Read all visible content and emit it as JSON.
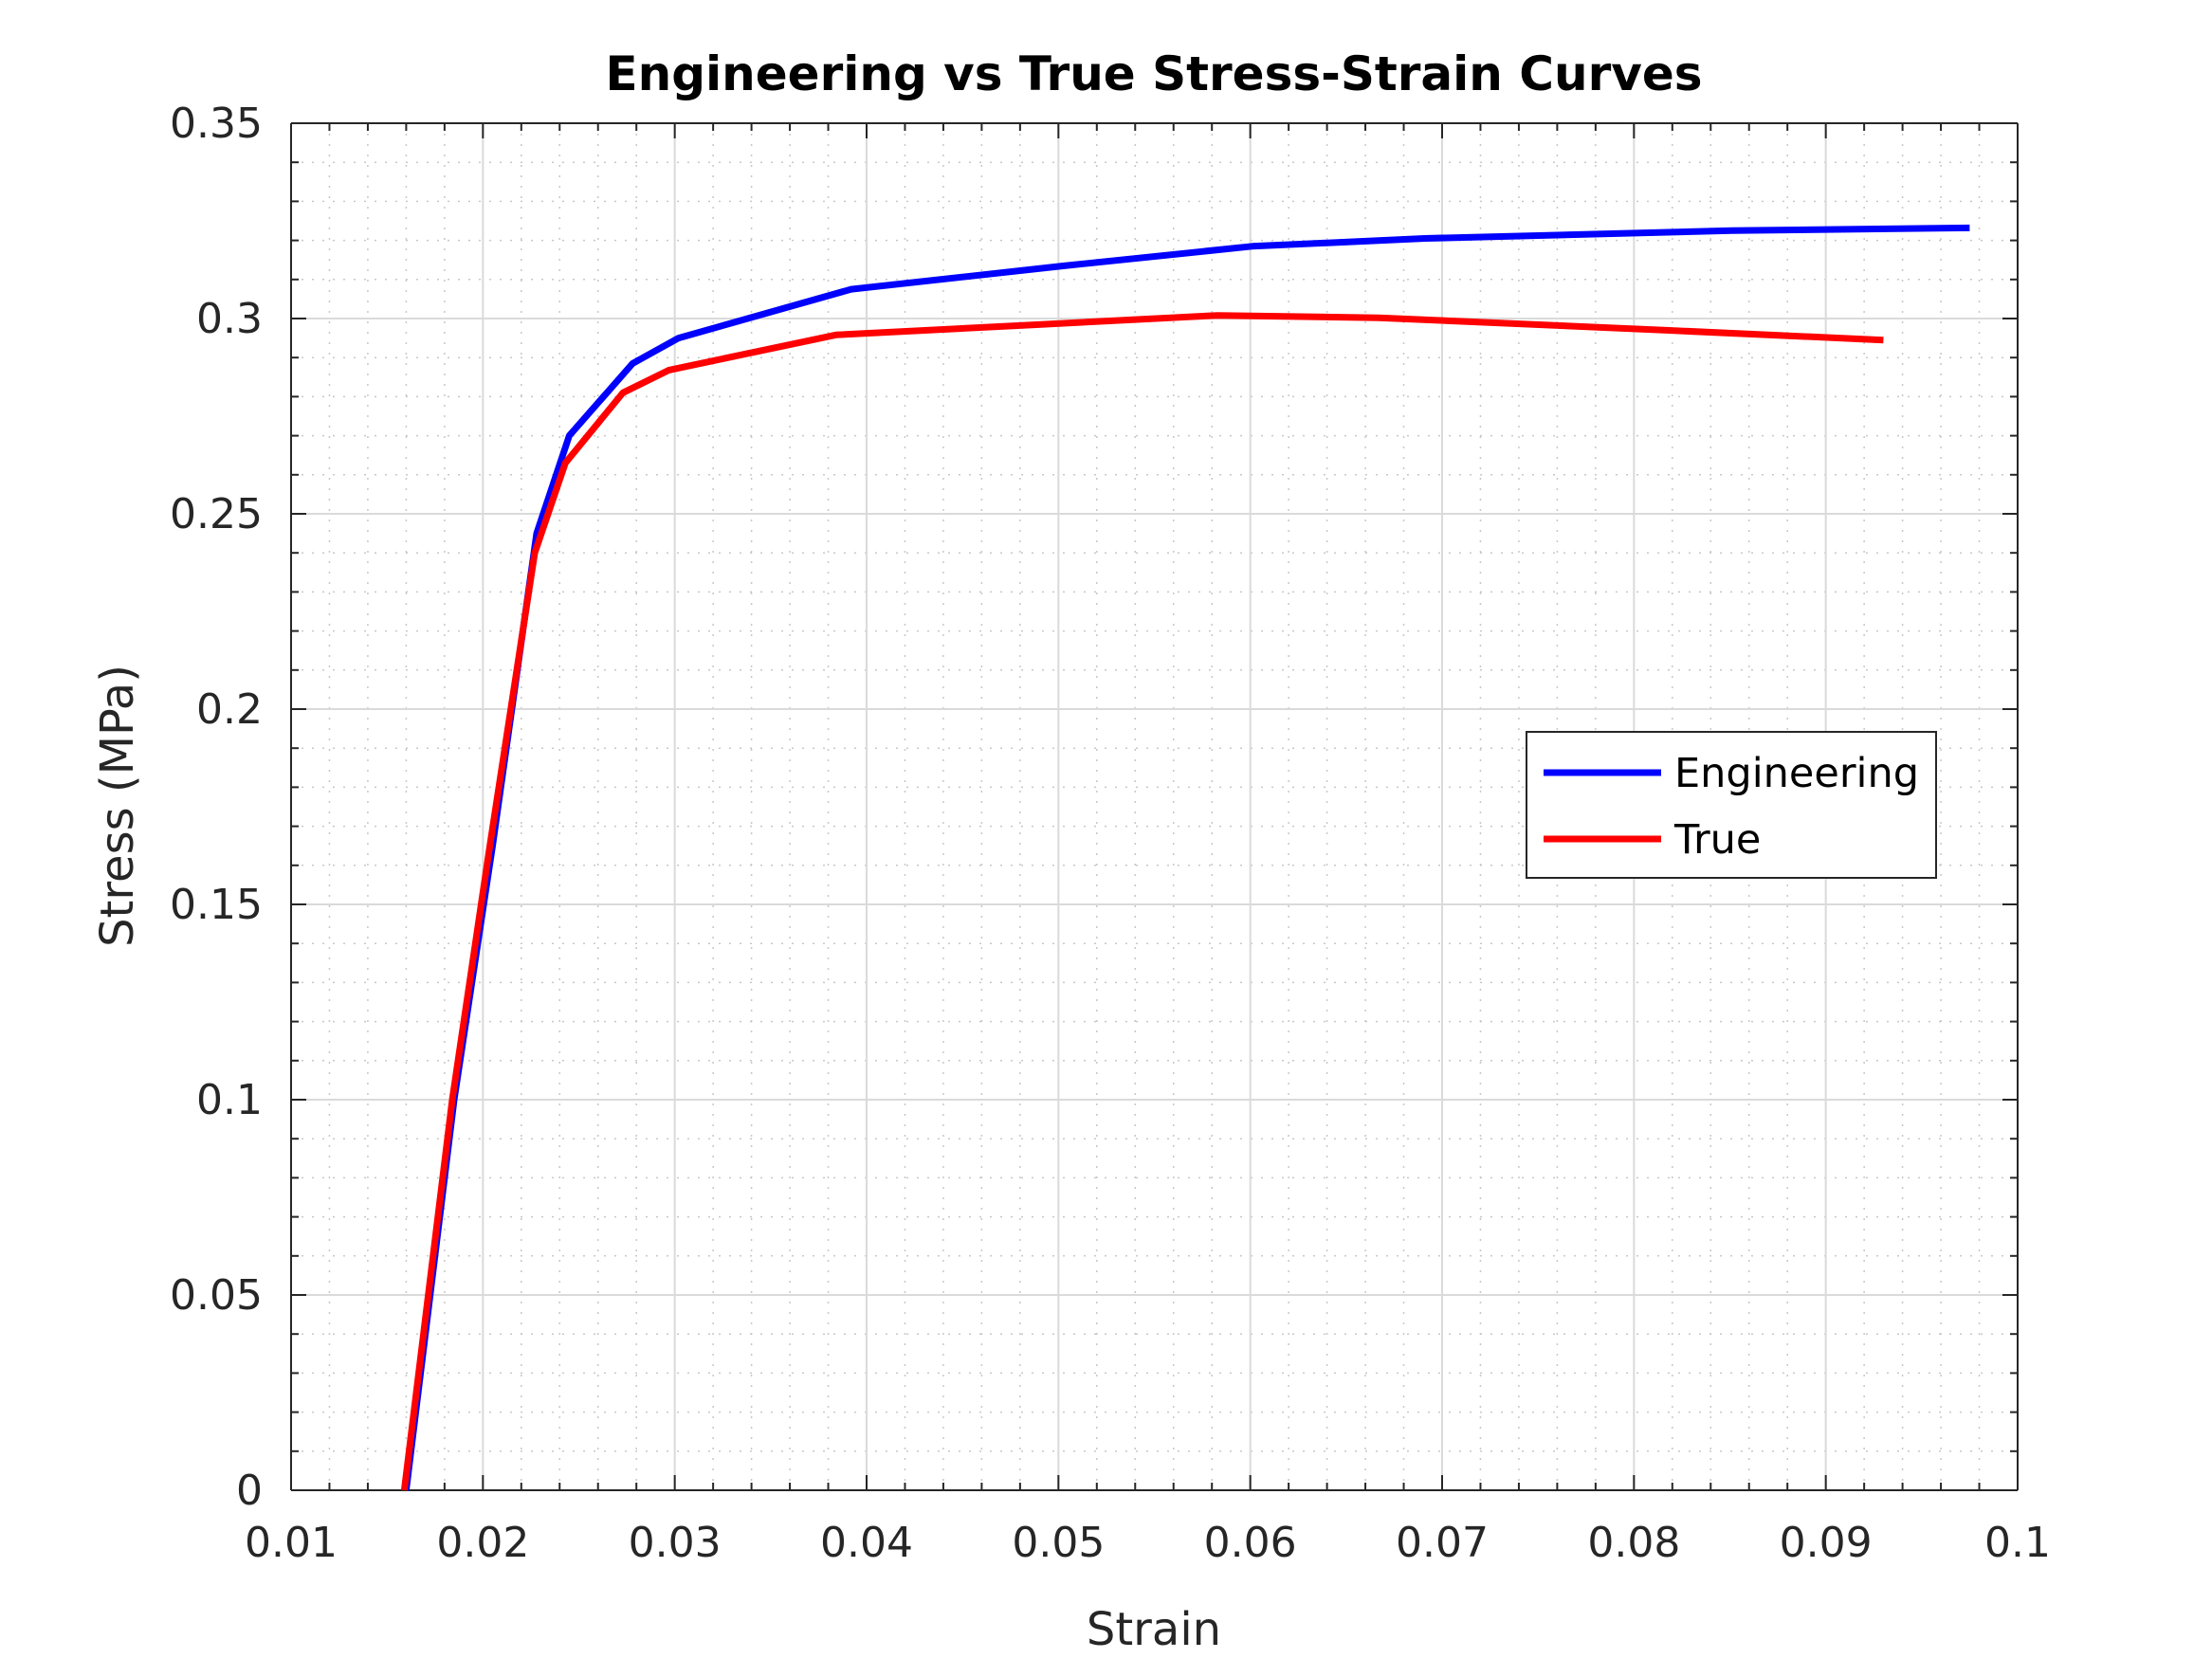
{
  "chart_data": {
    "type": "line",
    "title": "Engineering vs True Stress-Strain Curves",
    "xlabel": "Strain",
    "ylabel": "Stress (MPa)",
    "xlim": [
      0.01,
      0.1
    ],
    "ylim": [
      0,
      0.35
    ],
    "xticks": [
      0.01,
      0.02,
      0.03,
      0.04,
      0.05,
      0.06,
      0.07,
      0.08,
      0.09,
      0.1
    ],
    "xtick_labels": [
      "0.01",
      "0.02",
      "0.03",
      "0.04",
      "0.05",
      "0.06",
      "0.07",
      "0.08",
      "0.09",
      "0.1"
    ],
    "yticks": [
      0,
      0.05,
      0.1,
      0.15,
      0.2,
      0.25,
      0.3,
      0.35
    ],
    "ytick_labels": [
      "0",
      "0.05",
      "0.1",
      "0.15",
      "0.2",
      "0.25",
      "0.3",
      "0.35"
    ],
    "grid": true,
    "minor_grid": true,
    "legend_position": "right",
    "series": [
      {
        "name": "Engineering",
        "color": "#0000ff",
        "x": [
          0.016,
          0.0185,
          0.0205,
          0.0228,
          0.0245,
          0.0278,
          0.0302,
          0.0392,
          0.0503,
          0.0601,
          0.0691,
          0.0851,
          0.0975
        ],
        "y": [
          0.0,
          0.1,
          0.165,
          0.245,
          0.27,
          0.2885,
          0.295,
          0.3075,
          0.3135,
          0.3185,
          0.3205,
          0.3225,
          0.3232
        ]
      },
      {
        "name": "True",
        "color": "#ff0000",
        "x": [
          0.0159,
          0.0184,
          0.0203,
          0.0227,
          0.0243,
          0.0273,
          0.0297,
          0.0384,
          0.0491,
          0.0583,
          0.0667,
          0.0817,
          0.093
        ],
        "y": [
          0.0,
          0.1,
          0.163,
          0.24,
          0.263,
          0.281,
          0.2868,
          0.2958,
          0.2985,
          0.3008,
          0.3002,
          0.297,
          0.2945
        ]
      }
    ]
  }
}
